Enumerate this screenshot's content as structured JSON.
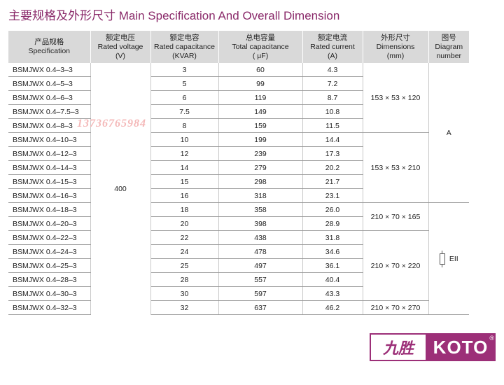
{
  "title": "主要规格及外形尺寸 Main Specification And Overall Dimension",
  "headers": {
    "spec": {
      "cn": "产品规格",
      "en": "Specification"
    },
    "voltage": {
      "cn": "额定电压",
      "en": "Rated voltage",
      "unit": "(V)"
    },
    "capacity": {
      "cn": "额定电容",
      "en": "Rated capacitance",
      "unit": "(KVAR)"
    },
    "total": {
      "cn": "总电容量",
      "en": "Total capacitance",
      "unit": "( μF)"
    },
    "current": {
      "cn": "额定电流",
      "en": "Rated current",
      "unit": "(A)"
    },
    "dimensions": {
      "cn": "外形尺寸",
      "en": "Dimensions",
      "unit": "(mm)"
    },
    "diagram": {
      "cn": "图号",
      "en": "Diagram",
      "en2": "number"
    }
  },
  "voltage": "400",
  "dims": [
    "153 × 53 × 120",
    "153 × 53 × 210",
    "210 × 70 × 165",
    "210 × 70 × 220",
    "210 × 70 × 270"
  ],
  "diagrams": [
    "A",
    "EII"
  ],
  "rows": [
    {
      "model": "BSMJWX 0.4–3–3",
      "kvar": "3",
      "uf": "60",
      "amp": "4.3"
    },
    {
      "model": "BSMJWX 0.4–5–3",
      "kvar": "5",
      "uf": "99",
      "amp": "7.2"
    },
    {
      "model": "BSMJWX 0.4–6–3",
      "kvar": "6",
      "uf": "119",
      "amp": "8.7"
    },
    {
      "model": "BSMJWX 0.4–7.5–3",
      "kvar": "7.5",
      "uf": "149",
      "amp": "10.8"
    },
    {
      "model": "BSMJWX 0.4–8–3",
      "kvar": "8",
      "uf": "159",
      "amp": "11.5"
    },
    {
      "model": "BSMJWX 0.4–10–3",
      "kvar": "10",
      "uf": "199",
      "amp": "14.4"
    },
    {
      "model": "BSMJWX 0.4–12–3",
      "kvar": "12",
      "uf": "239",
      "amp": "17.3"
    },
    {
      "model": "BSMJWX 0.4–14–3",
      "kvar": "14",
      "uf": "279",
      "amp": "20.2"
    },
    {
      "model": "BSMJWX 0.4–15–3",
      "kvar": "15",
      "uf": "298",
      "amp": "21.7"
    },
    {
      "model": "BSMJWX 0.4–16–3",
      "kvar": "16",
      "uf": "318",
      "amp": "23.1"
    },
    {
      "model": "BSMJWX 0.4–18–3",
      "kvar": "18",
      "uf": "358",
      "amp": "26.0"
    },
    {
      "model": "BSMJWX 0.4–20–3",
      "kvar": "20",
      "uf": "398",
      "amp": "28.9"
    },
    {
      "model": "BSMJWX 0.4–22–3",
      "kvar": "22",
      "uf": "438",
      "amp": "31.8"
    },
    {
      "model": "BSMJWX 0.4–24–3",
      "kvar": "24",
      "uf": "478",
      "amp": "34.6"
    },
    {
      "model": "BSMJWX 0.4–25–3",
      "kvar": "25",
      "uf": "497",
      "amp": "36.1"
    },
    {
      "model": "BSMJWX 0.4–28–3",
      "kvar": "28",
      "uf": "557",
      "amp": "40.4"
    },
    {
      "model": "BSMJWX 0.4–30–3",
      "kvar": "30",
      "uf": "597",
      "amp": "43.3"
    },
    {
      "model": "BSMJWX 0.4–32–3",
      "kvar": "32",
      "uf": "637",
      "amp": "46.2"
    }
  ],
  "watermark": "13736765984",
  "logo": {
    "cn": "九胜",
    "en": "KOTO",
    "reg": "®"
  }
}
